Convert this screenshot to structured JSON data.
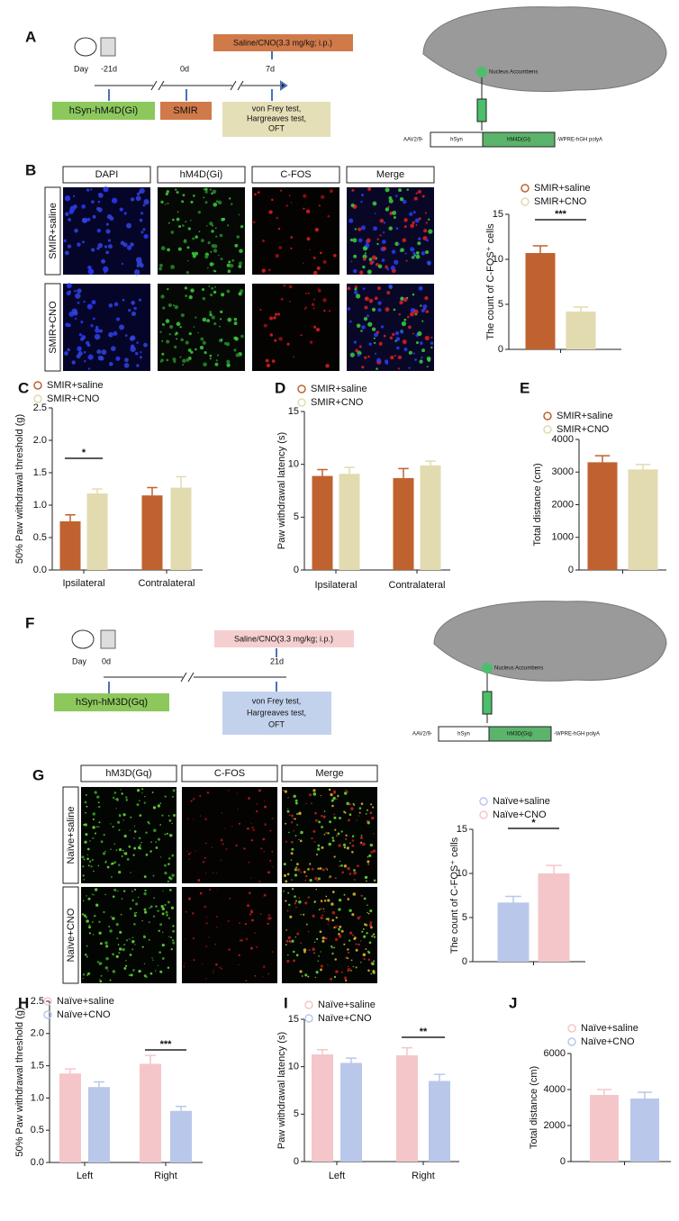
{
  "panel_labels": [
    "A",
    "B",
    "C",
    "D",
    "E",
    "F",
    "G",
    "H",
    "I",
    "J"
  ],
  "panel_a": {
    "timeline": [
      "Day",
      "-21d",
      "0d",
      "7d"
    ],
    "virus_box": "hSyn-hM4D(Gi)",
    "model_box": "SMIR",
    "test_box": [
      "von Frey test,",
      "Hargreaves test,",
      "OFT"
    ],
    "treatment": "Saline/CNO(3.3 mg/kg; i.p.)",
    "brain_label": "Nucleus Accumbens",
    "construct": [
      "AAV2/9-",
      "hSyn",
      "hM4D(Gi)",
      "-WPRE-hGH polyA"
    ]
  },
  "panel_b_images": {
    "columns": [
      "DAPI",
      "hM4D(Gi)",
      "C-FOS",
      "Merge"
    ],
    "rows": [
      "SMIR+saline",
      "SMIR+CNO"
    ]
  },
  "panel_f": {
    "timeline": [
      "Day",
      "0d",
      "21d"
    ],
    "virus_box": "hSyn-hM3D(Gq)",
    "test_box": [
      "von Frey test,",
      "Hargreaves test,",
      "OFT"
    ],
    "treatment": "Saline/CNO(3.3 mg/kg; i.p.)",
    "brain_label": "Nucleus Accumbens",
    "construct": [
      "AAV2/9-",
      "hSyn",
      "hM3D(Gq)",
      "-WPRE-hGH polyA"
    ]
  },
  "panel_g_images": {
    "columns": [
      "hM3D(Gq)",
      "C-FOS",
      "Merge"
    ],
    "rows": [
      "Naïve+saline",
      "Naïve+CNO"
    ]
  },
  "chart_data": [
    {
      "type": "bar",
      "ylabel": "The count of C-FOS⁺ cells",
      "categories": [
        null
      ],
      "series": [
        {
          "name": "SMIR+saline",
          "color": "#c0622f",
          "values": [
            10.7
          ],
          "errors": [
            0.8
          ]
        },
        {
          "name": "SMIR+CNO",
          "color": "#e2dbb0",
          "values": [
            4.2
          ],
          "errors": [
            0.5
          ]
        }
      ],
      "ylim": [
        0,
        15
      ],
      "yticks": [
        0,
        5,
        10,
        15
      ],
      "annotation": "***"
    },
    {
      "type": "bar",
      "ylabel": "50% Paw withdrawal threshold (g)",
      "categories": [
        "Ipsilateral",
        "Contralateral"
      ],
      "series": [
        {
          "name": "SMIR+saline",
          "color": "#c0622f",
          "values": [
            0.75,
            1.15
          ],
          "errors": [
            0.1,
            0.12
          ]
        },
        {
          "name": "SMIR+CNO",
          "color": "#e2dbb0",
          "values": [
            1.18,
            1.27
          ],
          "errors": [
            0.07,
            0.17
          ]
        }
      ],
      "ylim": [
        0,
        2.5
      ],
      "yticks": [
        {
          "value": 0,
          "label": "0.0"
        },
        0.5,
        {
          "value": 1,
          "label": "1.0"
        },
        1.5,
        {
          "value": 2,
          "label": "2.0"
        },
        2.5
      ],
      "annotation": "*"
    },
    {
      "type": "bar",
      "ylabel": "Paw withdrawal latency (s)",
      "categories": [
        "Ipsilateral",
        "Contralateral"
      ],
      "series": [
        {
          "name": "SMIR+saline",
          "color": "#c0622f",
          "values": [
            8.9,
            8.7
          ],
          "errors": [
            0.6,
            0.9
          ]
        },
        {
          "name": "SMIR+CNO",
          "color": "#e2dbb0",
          "values": [
            9.1,
            9.9
          ],
          "errors": [
            0.6,
            0.4
          ]
        }
      ],
      "ylim": [
        0,
        15
      ],
      "yticks": [
        0,
        5,
        10,
        15
      ]
    },
    {
      "type": "bar",
      "ylabel": "Total distance (cm)",
      "categories": [
        null
      ],
      "series": [
        {
          "name": "SMIR+saline",
          "color": "#c0622f",
          "values": [
            3300
          ],
          "errors": [
            200
          ]
        },
        {
          "name": "SMIR+CNO",
          "color": "#e2dbb0",
          "values": [
            3080
          ],
          "errors": [
            150
          ]
        }
      ],
      "ylim": [
        0,
        4000
      ],
      "yticks": [
        0,
        1000,
        2000,
        3000,
        4000
      ]
    },
    {
      "type": "bar",
      "ylabel": "The count of C-FOS⁺ cells",
      "categories": [
        null
      ],
      "series": [
        {
          "name": "Naïve+saline",
          "color": "#b9c7ea",
          "values": [
            6.7
          ],
          "errors": [
            0.7
          ]
        },
        {
          "name": "Naïve+CNO",
          "color": "#f5c6c9",
          "values": [
            10.0
          ],
          "errors": [
            0.9
          ]
        }
      ],
      "ylim": [
        0,
        15
      ],
      "yticks": [
        0,
        5,
        10,
        15
      ],
      "annotation": "*"
    },
    {
      "type": "bar",
      "ylabel": "50% Paw withdrawal threshold (g)",
      "categories": [
        "Left",
        "Right"
      ],
      "series": [
        {
          "name": "Naïve+saline",
          "color": "#f5c6c9",
          "values": [
            1.38,
            1.53
          ],
          "errors": [
            0.07,
            0.13
          ]
        },
        {
          "name": "Naïve+CNO",
          "color": "#b9c7ea",
          "values": [
            1.17,
            0.8
          ],
          "errors": [
            0.08,
            0.07
          ]
        }
      ],
      "ylim": [
        0,
        2.5
      ],
      "yticks": [
        {
          "value": 0,
          "label": "0.0"
        },
        0.5,
        {
          "value": 1,
          "label": "1.0"
        },
        1.5,
        {
          "value": 2,
          "label": "2.0"
        },
        2.5
      ],
      "annotation": "***"
    },
    {
      "type": "bar",
      "ylabel": "Paw withdrawal latency (s)",
      "categories": [
        "Left",
        "Right"
      ],
      "series": [
        {
          "name": "Naïve+saline",
          "color": "#f5c6c9",
          "values": [
            11.3,
            11.2
          ],
          "errors": [
            0.5,
            0.8
          ]
        },
        {
          "name": "Naïve+CNO",
          "color": "#b9c7ea",
          "values": [
            10.4,
            8.5
          ],
          "errors": [
            0.5,
            0.7
          ]
        }
      ],
      "ylim": [
        0,
        15
      ],
      "yticks": [
        0,
        5,
        10,
        15
      ],
      "annotation": "**"
    },
    {
      "type": "bar",
      "ylabel": "Total distance (cm)",
      "categories": [
        null
      ],
      "series": [
        {
          "name": "Naïve+saline",
          "color": "#f5c6c9",
          "values": [
            3700
          ],
          "errors": [
            300
          ]
        },
        {
          "name": "Naïve+CNO",
          "color": "#b9c7ea",
          "values": [
            3500
          ],
          "errors": [
            350
          ]
        }
      ],
      "ylim": [
        0,
        6000
      ],
      "yticks": [
        0,
        2000,
        4000,
        6000
      ]
    }
  ]
}
